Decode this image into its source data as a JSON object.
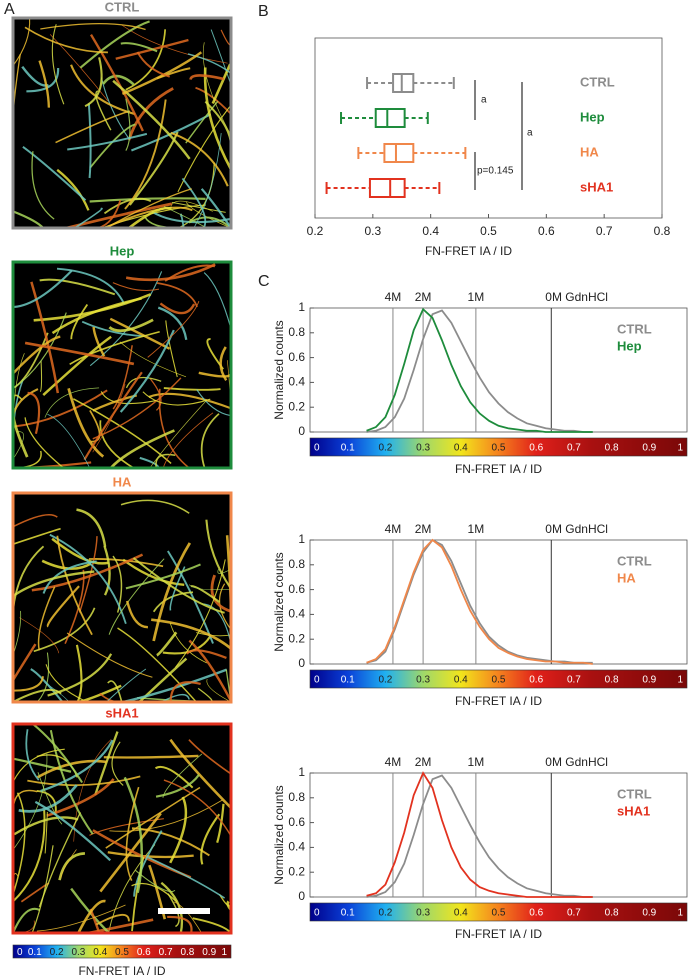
{
  "panel_labels": [
    "A",
    "B",
    "C"
  ],
  "images": {
    "panels": [
      {
        "title": "CTRL",
        "color": "#8c8c8c"
      },
      {
        "title": "Hep",
        "color": "#1e8c3c"
      },
      {
        "title": "HA",
        "color": "#f0874a"
      },
      {
        "title": "sHA1",
        "color": "#e2321f"
      }
    ],
    "colorbar_ticks": [
      0,
      0.1,
      0.2,
      0.3,
      0.4,
      0.5,
      0.6,
      0.7,
      0.8,
      0.9,
      1
    ],
    "colorbar_label": "FN-FRET IA / ID"
  },
  "chart_data": [
    {
      "type": "box",
      "categories": [
        "CTRL",
        "Hep",
        "HA",
        "sHA1"
      ],
      "colors": [
        "#8c8c8c",
        "#1e8c3c",
        "#f0874a",
        "#e2321f"
      ],
      "stats": [
        {
          "min": 0.29,
          "q1": 0.335,
          "median": 0.35,
          "q3": 0.37,
          "max": 0.44
        },
        {
          "min": 0.245,
          "q1": 0.305,
          "median": 0.325,
          "q3": 0.355,
          "max": 0.395
        },
        {
          "min": 0.275,
          "q1": 0.32,
          "median": 0.34,
          "q3": 0.37,
          "max": 0.46
        },
        {
          "min": 0.22,
          "q1": 0.295,
          "median": 0.33,
          "q3": 0.355,
          "max": 0.415
        }
      ],
      "xlim": [
        0.2,
        0.8
      ],
      "xticks": [
        0.2,
        0.3,
        0.4,
        0.5,
        0.6,
        0.7,
        0.8
      ],
      "xlabel": "FN-FRET IA / ID",
      "annotations": [
        "a",
        "a",
        "p=0.145"
      ]
    },
    {
      "type": "line",
      "x": [
        0.15,
        0.175,
        0.2,
        0.225,
        0.25,
        0.275,
        0.3,
        0.325,
        0.35,
        0.375,
        0.4,
        0.425,
        0.45,
        0.475,
        0.5,
        0.525,
        0.55,
        0.575,
        0.6,
        0.625,
        0.65,
        0.675,
        0.7,
        0.725,
        0.75
      ],
      "series": [
        {
          "name": "CTRL",
          "color": "#8c8c8c",
          "values": [
            0,
            0.01,
            0.04,
            0.12,
            0.27,
            0.5,
            0.75,
            0.95,
            0.98,
            0.88,
            0.73,
            0.58,
            0.44,
            0.32,
            0.23,
            0.16,
            0.11,
            0.07,
            0.05,
            0.03,
            0.02,
            0.01,
            0.01,
            0,
            0
          ]
        },
        {
          "name": "Hep",
          "color": "#1e8c3c",
          "values": [
            0.01,
            0.04,
            0.12,
            0.3,
            0.55,
            0.82,
            0.99,
            0.92,
            0.74,
            0.54,
            0.37,
            0.24,
            0.15,
            0.09,
            0.05,
            0.03,
            0.02,
            0.01,
            0.01,
            0,
            0,
            0,
            0,
            0,
            0
          ]
        }
      ],
      "xlim": [
        0,
        1
      ],
      "ylim": [
        0,
        1
      ],
      "yticks": [
        0,
        0.2,
        0.4,
        0.6,
        0.8,
        1
      ],
      "ylabel": "Normalized counts",
      "xlabel": "FN-FRET IA / ID",
      "reference_lines": [
        {
          "x": 0.22,
          "label": "4M"
        },
        {
          "x": 0.3,
          "label": "2M"
        },
        {
          "x": 0.44,
          "label": "1M"
        },
        {
          "x": 0.64,
          "label": "0M GdnHCl"
        }
      ],
      "colorbar_ticks": [
        0,
        0.1,
        0.2,
        0.3,
        0.4,
        0.5,
        0.6,
        0.7,
        0.8,
        0.9,
        1
      ]
    },
    {
      "type": "line",
      "x": [
        0.15,
        0.175,
        0.2,
        0.225,
        0.25,
        0.275,
        0.3,
        0.325,
        0.35,
        0.375,
        0.4,
        0.425,
        0.45,
        0.475,
        0.5,
        0.525,
        0.55,
        0.575,
        0.6,
        0.625,
        0.65,
        0.675,
        0.7,
        0.725,
        0.75
      ],
      "series": [
        {
          "name": "CTRL",
          "color": "#8c8c8c",
          "values": [
            0.01,
            0.03,
            0.1,
            0.28,
            0.5,
            0.72,
            0.9,
            1,
            0.96,
            0.83,
            0.65,
            0.47,
            0.33,
            0.22,
            0.15,
            0.1,
            0.07,
            0.05,
            0.04,
            0.03,
            0.02,
            0.02,
            0.01,
            0.01,
            0.01
          ]
        },
        {
          "name": "HA",
          "color": "#f0874a",
          "values": [
            0.01,
            0.04,
            0.12,
            0.3,
            0.52,
            0.74,
            0.92,
            1,
            0.94,
            0.79,
            0.6,
            0.43,
            0.3,
            0.2,
            0.13,
            0.09,
            0.06,
            0.04,
            0.03,
            0.02,
            0.02,
            0.01,
            0.01,
            0.01,
            0
          ]
        }
      ],
      "xlim": [
        0,
        1
      ],
      "ylim": [
        0,
        1
      ],
      "yticks": [
        0,
        0.2,
        0.4,
        0.6,
        0.8,
        1
      ],
      "ylabel": "Normalized counts",
      "xlabel": "FN-FRET IA / ID",
      "reference_lines": [
        {
          "x": 0.22,
          "label": "4M"
        },
        {
          "x": 0.3,
          "label": "2M"
        },
        {
          "x": 0.44,
          "label": "1M"
        },
        {
          "x": 0.64,
          "label": "0M GdnHCl"
        }
      ],
      "colorbar_ticks": [
        0,
        0.1,
        0.2,
        0.3,
        0.4,
        0.5,
        0.6,
        0.7,
        0.8,
        0.9,
        1
      ]
    },
    {
      "type": "line",
      "x": [
        0.15,
        0.175,
        0.2,
        0.225,
        0.25,
        0.275,
        0.3,
        0.325,
        0.35,
        0.375,
        0.4,
        0.425,
        0.45,
        0.475,
        0.5,
        0.525,
        0.55,
        0.575,
        0.6,
        0.625,
        0.65,
        0.675,
        0.7,
        0.725,
        0.75
      ],
      "series": [
        {
          "name": "CTRL",
          "color": "#8c8c8c",
          "values": [
            0,
            0.01,
            0.04,
            0.12,
            0.27,
            0.5,
            0.75,
            0.95,
            0.98,
            0.88,
            0.73,
            0.58,
            0.44,
            0.32,
            0.23,
            0.16,
            0.11,
            0.07,
            0.05,
            0.03,
            0.02,
            0.01,
            0.01,
            0,
            0
          ]
        },
        {
          "name": "sHA1",
          "color": "#e2321f",
          "values": [
            0.01,
            0.03,
            0.1,
            0.28,
            0.52,
            0.82,
            1,
            0.88,
            0.62,
            0.4,
            0.24,
            0.14,
            0.08,
            0.05,
            0.03,
            0.02,
            0.01,
            0,
            0,
            0,
            0,
            0,
            0,
            0,
            0
          ]
        }
      ],
      "xlim": [
        0,
        1
      ],
      "ylim": [
        0,
        1
      ],
      "yticks": [
        0,
        0.2,
        0.4,
        0.6,
        0.8,
        1
      ],
      "ylabel": "Normalized counts",
      "xlabel": "FN-FRET IA / ID",
      "reference_lines": [
        {
          "x": 0.22,
          "label": "4M"
        },
        {
          "x": 0.3,
          "label": "2M"
        },
        {
          "x": 0.44,
          "label": "1M"
        },
        {
          "x": 0.64,
          "label": "0M GdnHCl"
        }
      ],
      "colorbar_ticks": [
        0,
        0.1,
        0.2,
        0.3,
        0.4,
        0.5,
        0.6,
        0.7,
        0.8,
        0.9,
        1
      ]
    }
  ]
}
